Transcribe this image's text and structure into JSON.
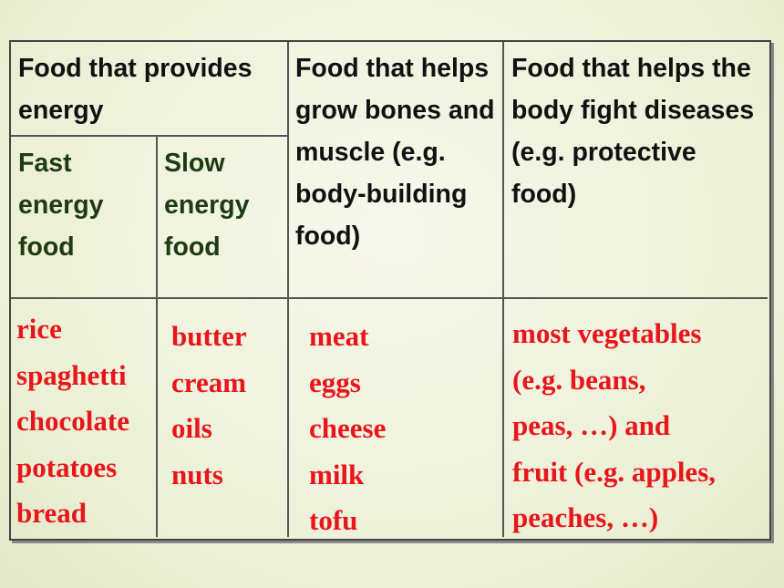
{
  "table": {
    "headers": {
      "energy": "Food that provides energy",
      "fast": "Fast energy food",
      "slow": "Slow energy food",
      "growth": "Food that helps grow bones and muscle (e.g. body-building food)",
      "protective": "Food that helps the body fight diseases (e.g. protective food)"
    },
    "fast_foods": [
      "rice",
      "spaghetti",
      "chocolate",
      "potatoes",
      "bread"
    ],
    "slow_foods": [
      "butter",
      "cream",
      "oils",
      "nuts"
    ],
    "growth_foods": [
      "meat",
      "eggs",
      "cheese",
      "milk",
      "tofu"
    ],
    "protective_foods": [
      "most vegetables",
      "(e.g. beans,",
      "peas, …) and",
      "fruit (e.g. apples,",
      "peaches, …)"
    ]
  },
  "colors": {
    "header_text": "#111111",
    "subheader_text": "#1E3B12",
    "food_text": "#E8151B",
    "background": "#ECF0D6"
  }
}
